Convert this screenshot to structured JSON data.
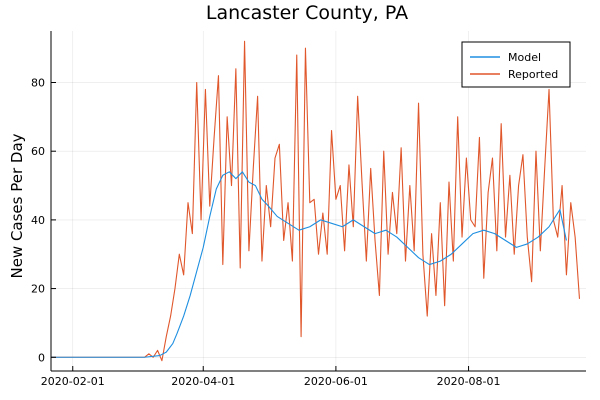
{
  "chart_data": {
    "type": "line",
    "title": "Lancaster County, PA",
    "xlabel": "",
    "ylabel": "New Cases Per Day",
    "xlim": [
      "2020-01-22",
      "2020-09-24"
    ],
    "ylim": [
      -4,
      95
    ],
    "x_ticks": [
      "2020-02-01",
      "2020-04-01",
      "2020-06-01",
      "2020-08-01"
    ],
    "y_ticks": [
      0,
      20,
      40,
      60,
      80
    ],
    "grid": true,
    "legend_position": "top-right",
    "series": [
      {
        "name": "Model",
        "color": "#1E8FE0",
        "x": [
          "2020-01-22",
          "2020-02-15",
          "2020-03-05",
          "2020-03-12",
          "2020-03-15",
          "2020-03-18",
          "2020-03-20",
          "2020-03-23",
          "2020-03-26",
          "2020-03-29",
          "2020-04-01",
          "2020-04-04",
          "2020-04-07",
          "2020-04-10",
          "2020-04-13",
          "2020-04-16",
          "2020-04-19",
          "2020-04-22",
          "2020-04-25",
          "2020-04-28",
          "2020-05-01",
          "2020-05-05",
          "2020-05-10",
          "2020-05-15",
          "2020-05-20",
          "2020-05-25",
          "2020-05-30",
          "2020-06-04",
          "2020-06-09",
          "2020-06-14",
          "2020-06-19",
          "2020-06-24",
          "2020-06-29",
          "2020-07-04",
          "2020-07-09",
          "2020-07-14",
          "2020-07-19",
          "2020-07-24",
          "2020-07-29",
          "2020-08-03",
          "2020-08-08",
          "2020-08-13",
          "2020-08-18",
          "2020-08-23",
          "2020-08-28",
          "2020-09-02",
          "2020-09-07",
          "2020-09-12",
          "2020-09-15"
        ],
        "y": [
          0,
          0,
          0,
          0.5,
          1.5,
          4,
          7,
          12,
          18,
          25,
          32,
          41,
          49,
          53,
          54,
          52,
          54,
          51,
          50,
          46,
          44,
          41,
          39,
          37,
          38,
          40,
          39,
          38,
          40,
          38,
          36,
          37,
          35,
          32,
          29,
          27,
          28,
          30,
          33,
          36,
          37,
          36,
          34,
          32,
          33,
          35,
          38,
          43,
          34
        ]
      },
      {
        "name": "Reported",
        "color": "#E0572C",
        "x": [
          "2020-01-22",
          "2020-03-05",
          "2020-03-07",
          "2020-03-09",
          "2020-03-11",
          "2020-03-13",
          "2020-03-15",
          "2020-03-17",
          "2020-03-19",
          "2020-03-21",
          "2020-03-23",
          "2020-03-25",
          "2020-03-27",
          "2020-03-29",
          "2020-03-31",
          "2020-04-02",
          "2020-04-04",
          "2020-04-06",
          "2020-04-08",
          "2020-04-10",
          "2020-04-12",
          "2020-04-14",
          "2020-04-16",
          "2020-04-18",
          "2020-04-20",
          "2020-04-22",
          "2020-04-24",
          "2020-04-26",
          "2020-04-28",
          "2020-04-30",
          "2020-05-02",
          "2020-05-04",
          "2020-05-06",
          "2020-05-08",
          "2020-05-10",
          "2020-05-12",
          "2020-05-14",
          "2020-05-16",
          "2020-05-18",
          "2020-05-20",
          "2020-05-22",
          "2020-05-24",
          "2020-05-26",
          "2020-05-28",
          "2020-05-30",
          "2020-06-01",
          "2020-06-03",
          "2020-06-05",
          "2020-06-07",
          "2020-06-09",
          "2020-06-11",
          "2020-06-13",
          "2020-06-15",
          "2020-06-17",
          "2020-06-19",
          "2020-06-21",
          "2020-06-23",
          "2020-06-25",
          "2020-06-27",
          "2020-06-29",
          "2020-07-01",
          "2020-07-03",
          "2020-07-05",
          "2020-07-07",
          "2020-07-09",
          "2020-07-11",
          "2020-07-13",
          "2020-07-15",
          "2020-07-17",
          "2020-07-19",
          "2020-07-21",
          "2020-07-23",
          "2020-07-25",
          "2020-07-27",
          "2020-07-29",
          "2020-07-31",
          "2020-08-02",
          "2020-08-04",
          "2020-08-06",
          "2020-08-08",
          "2020-08-10",
          "2020-08-12",
          "2020-08-14",
          "2020-08-16",
          "2020-08-18",
          "2020-08-20",
          "2020-08-22",
          "2020-08-24",
          "2020-08-26",
          "2020-08-28",
          "2020-08-30",
          "2020-09-01",
          "2020-09-03",
          "2020-09-05",
          "2020-09-07",
          "2020-09-09",
          "2020-09-11",
          "2020-09-13",
          "2020-09-15",
          "2020-09-17",
          "2020-09-19",
          "2020-09-21"
        ],
        "y": [
          0,
          0,
          1,
          0,
          2,
          -1,
          6,
          12,
          20,
          30,
          24,
          45,
          36,
          80,
          40,
          78,
          44,
          64,
          82,
          27,
          70,
          50,
          84,
          26,
          92,
          31,
          55,
          76,
          28,
          50,
          38,
          58,
          62,
          34,
          45,
          28,
          88,
          6,
          90,
          45,
          46,
          30,
          42,
          30,
          66,
          46,
          50,
          31,
          56,
          38,
          76,
          51,
          28,
          55,
          34,
          18,
          60,
          30,
          48,
          36,
          61,
          28,
          50,
          31,
          74,
          30,
          12,
          36,
          18,
          45,
          15,
          51,
          28,
          70,
          35,
          58,
          40,
          38,
          64,
          23,
          48,
          58,
          31,
          68,
          35,
          53,
          30,
          50,
          59,
          35,
          22,
          60,
          31,
          55,
          78,
          40,
          35,
          50,
          24,
          45,
          35,
          17
        ]
      }
    ]
  }
}
